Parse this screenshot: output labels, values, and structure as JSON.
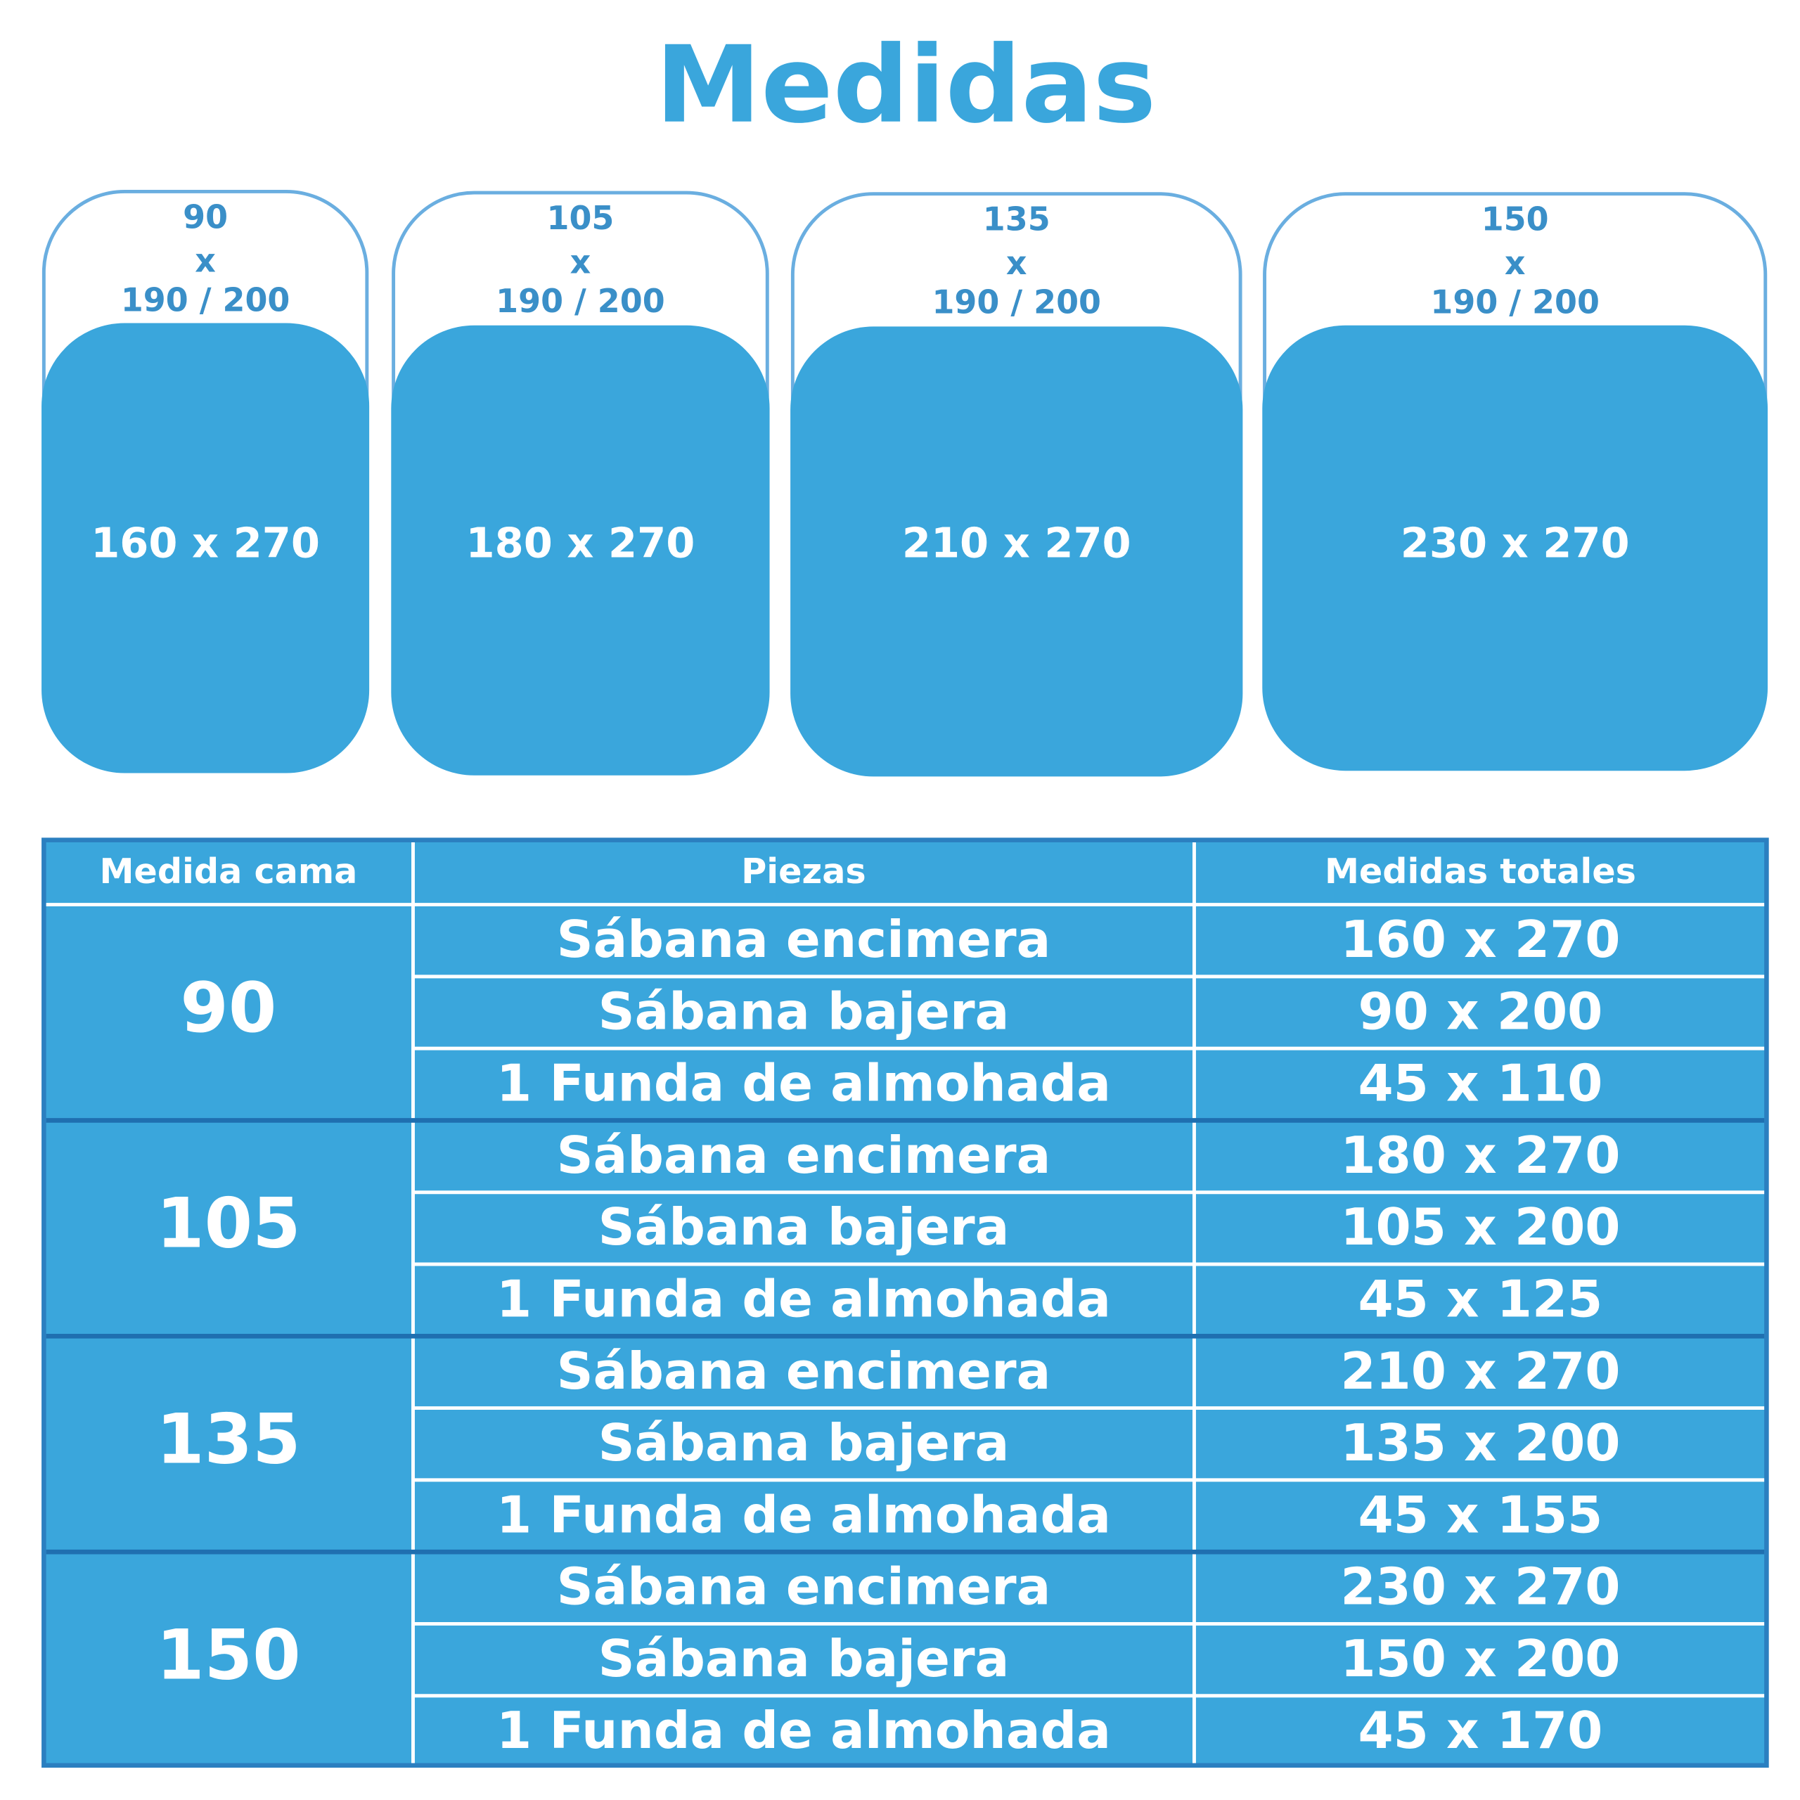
{
  "header": {
    "title": "Medidas"
  },
  "beds": [
    {
      "size": "90",
      "by": "x",
      "length": "190 / 200",
      "duvet": "160 x 270"
    },
    {
      "size": "105",
      "by": "x",
      "length": "190 / 200",
      "duvet": "180 x 270"
    },
    {
      "size": "135",
      "by": "x",
      "length": "190 / 200",
      "duvet": "210 x 270"
    },
    {
      "size": "150",
      "by": "x",
      "length": "190 / 200",
      "duvet": "230 x 270"
    }
  ],
  "table": {
    "columns": [
      "Medida cama",
      "Piezas",
      "Medidas totales"
    ],
    "groups": [
      {
        "bed": "90",
        "rows": [
          [
            "Sábana encimera",
            "160 x 270"
          ],
          [
            "Sábana bajera",
            "90 x 200"
          ],
          [
            "1 Funda de almohada",
            "45 x 110"
          ]
        ]
      },
      {
        "bed": "105",
        "rows": [
          [
            "Sábana encimera",
            "180 x 270"
          ],
          [
            "Sábana bajera",
            "105 x 200"
          ],
          [
            "1 Funda de almohada",
            "45 x 125"
          ]
        ]
      },
      {
        "bed": "135",
        "rows": [
          [
            "Sábana encimera",
            "210 x 270"
          ],
          [
            "Sábana bajera",
            "135 x 200"
          ],
          [
            "1 Funda de almohada",
            "45 x 155"
          ]
        ]
      },
      {
        "bed": "150",
        "rows": [
          [
            "Sábana encimera",
            "230 x 270"
          ],
          [
            "Sábana bajera",
            "150 x 200"
          ],
          [
            "1 Funda de almohada",
            "45 x 170"
          ]
        ]
      }
    ]
  }
}
